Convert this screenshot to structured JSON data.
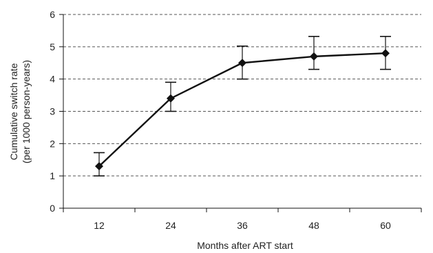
{
  "chart_data": {
    "type": "line",
    "title": "",
    "xlabel": "Months after ART start",
    "ylabel_lines": [
      "Cumulative switch rate",
      "(per 1000 person-years)"
    ],
    "categories": [
      "12",
      "24",
      "36",
      "48",
      "60"
    ],
    "ylim": [
      0,
      6
    ],
    "yticks": [
      "0",
      "1",
      "2",
      "3",
      "4",
      "5",
      "6"
    ],
    "grid": true,
    "legend": "none",
    "series": [
      {
        "values": [
          1.3,
          3.4,
          4.5,
          4.7,
          4.8
        ],
        "error_low": [
          1.0,
          3.0,
          4.0,
          4.3,
          4.3
        ],
        "error_high": [
          1.72,
          3.9,
          5.02,
          5.32,
          5.32
        ],
        "color": "#111111",
        "marker": "diamond"
      }
    ]
  }
}
